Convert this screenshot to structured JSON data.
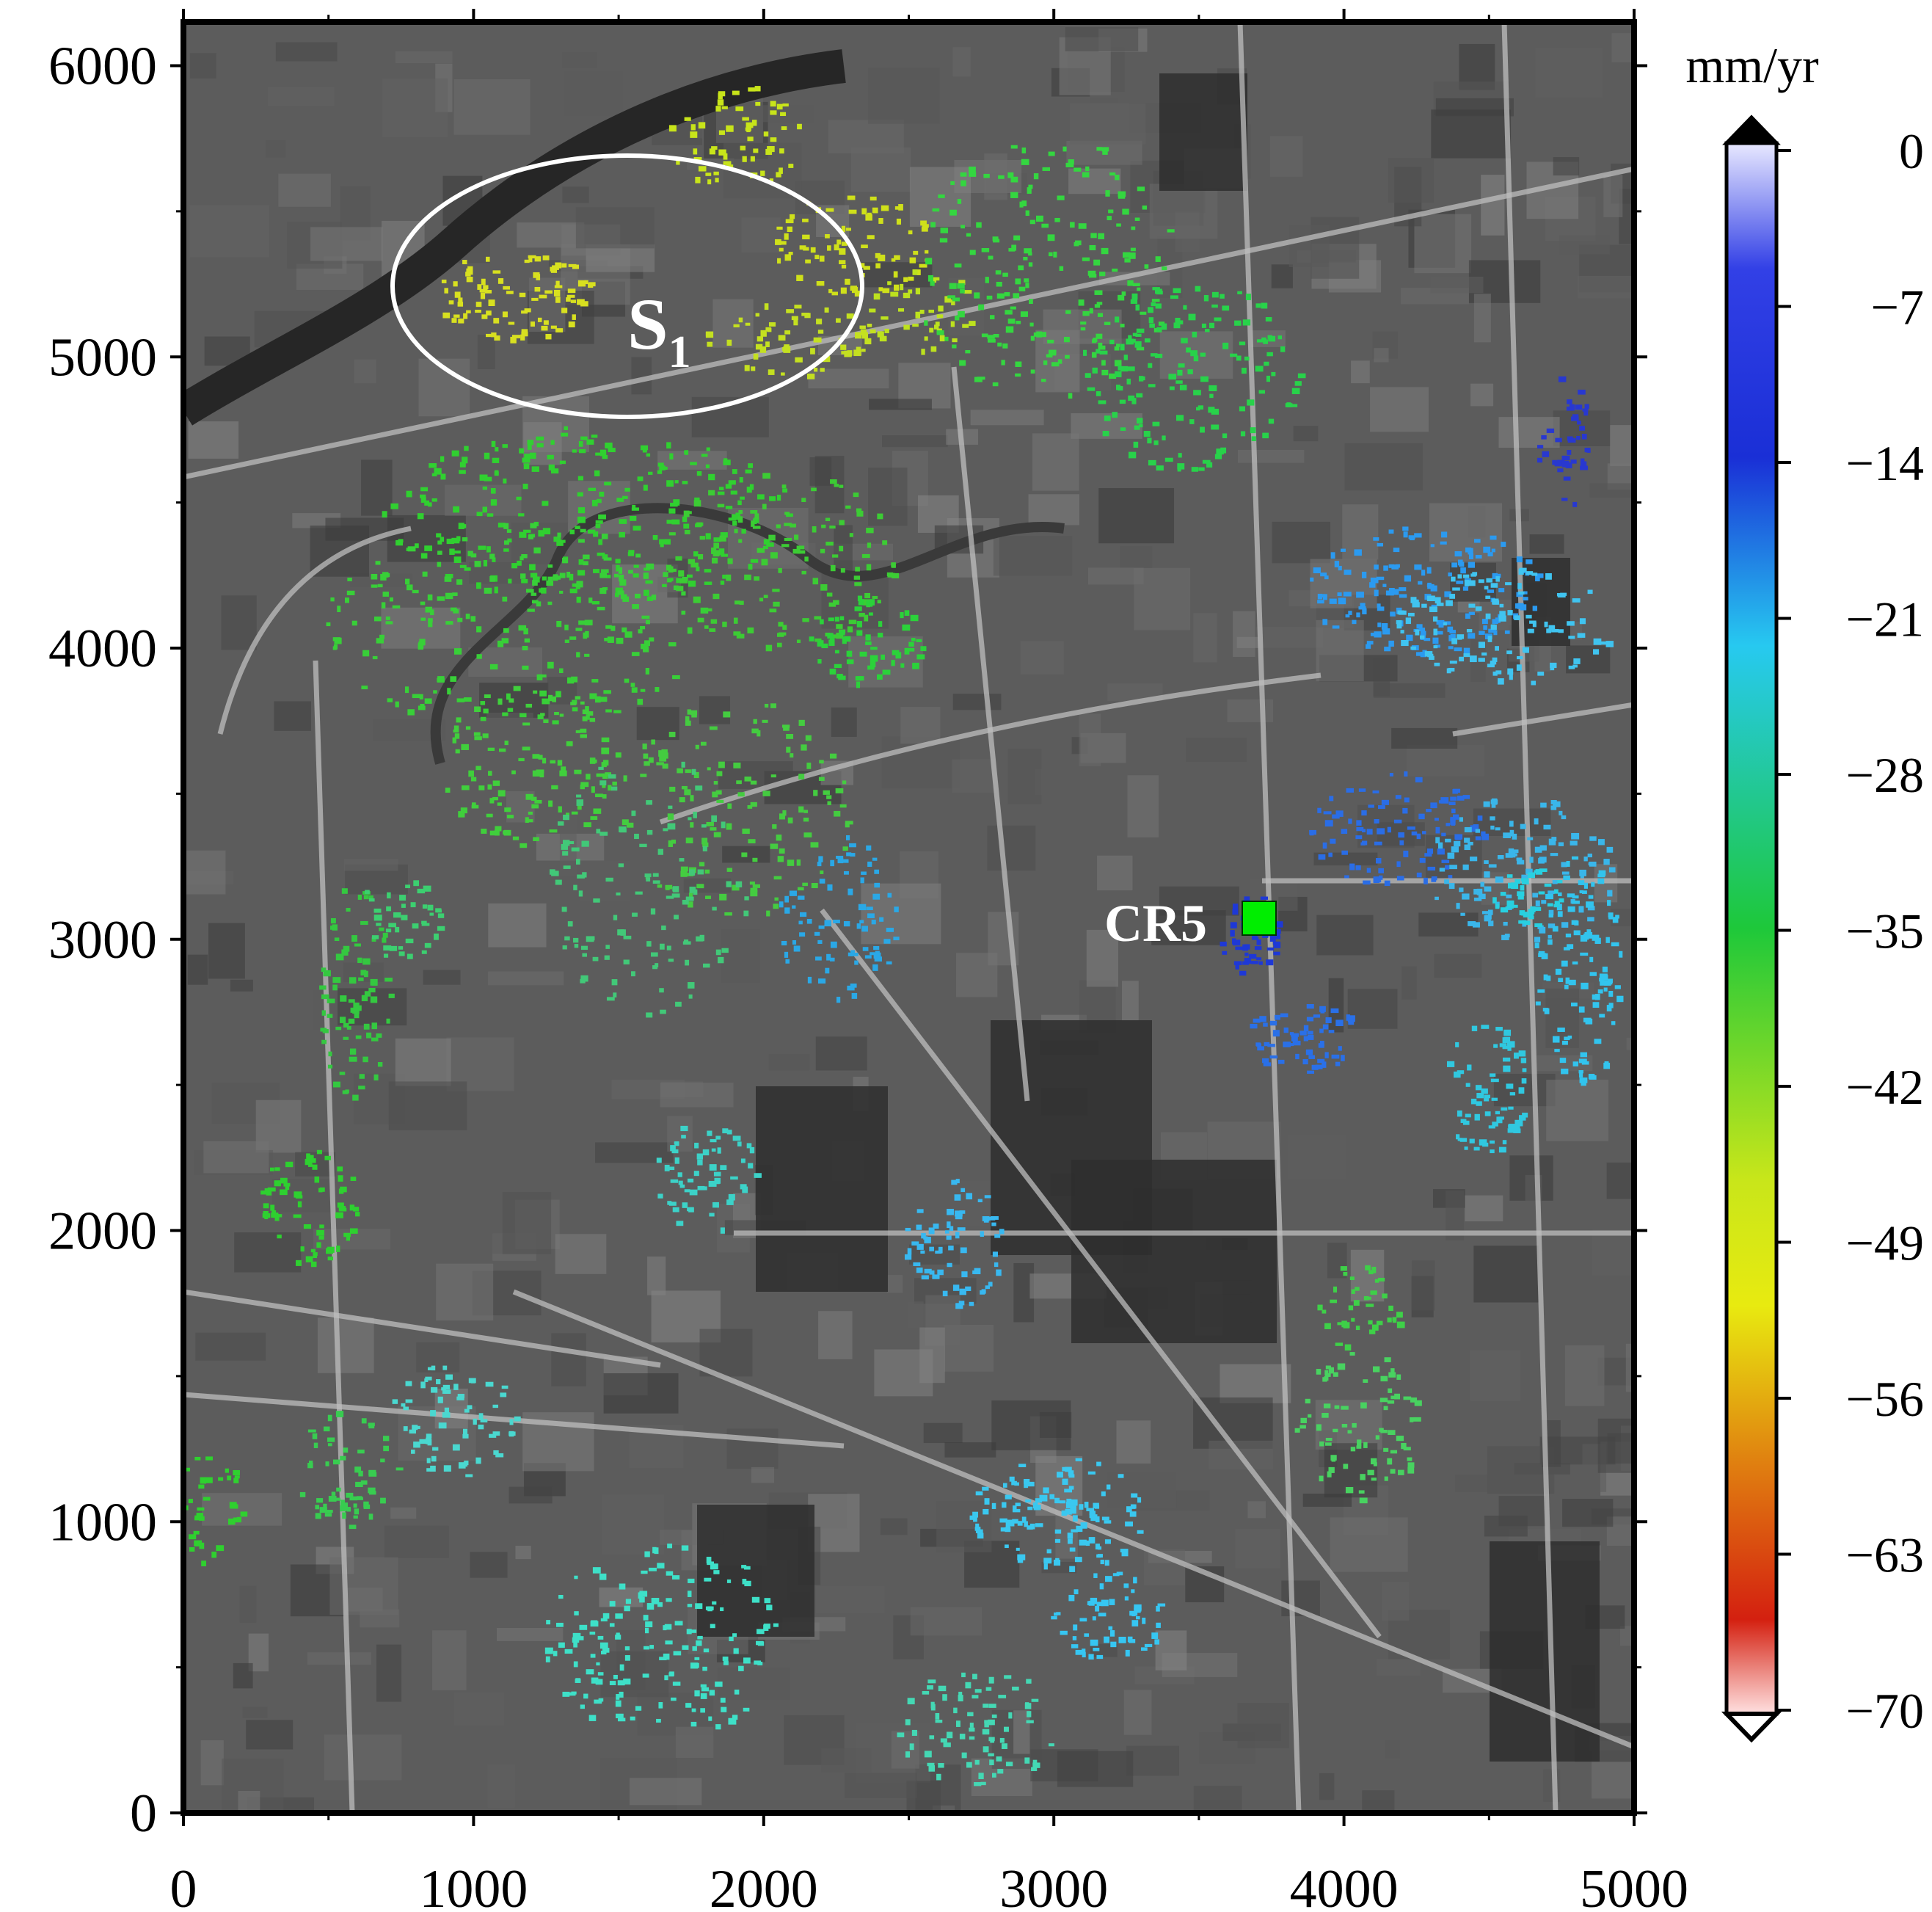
{
  "figure": {
    "type": "deformation-velocity-map",
    "x_axis": {
      "ticks": [
        "0",
        "1000",
        "2000",
        "3000",
        "4000",
        "5000"
      ],
      "range": [
        0,
        5000
      ]
    },
    "y_axis": {
      "ticks": [
        "0",
        "1000",
        "2000",
        "3000",
        "4000",
        "5000",
        "6000"
      ],
      "range": [
        0,
        6150
      ]
    }
  },
  "colorbar": {
    "unit_label": "mm/yr",
    "ticks": [
      "0",
      "−7",
      "−14",
      "−21",
      "−28",
      "−35",
      "−42",
      "−49",
      "−56",
      "−63",
      "−70"
    ],
    "range": [
      -70,
      0
    ],
    "colors_top_to_bottom": [
      "#e8e8ff",
      "#1a2fd6",
      "#27c9f0",
      "#1ec83a",
      "#e8ea10",
      "#e08010",
      "#d42010",
      "#ffe0e0"
    ]
  },
  "annotations": {
    "region_label": "S",
    "region_subscript": "1",
    "point_label": "CR5",
    "point_marker_color": "#00ee00",
    "ellipse_color": "#ffffff"
  },
  "basemap": {
    "description_colors": {
      "background": "#5c5c5c",
      "water": "#2c2c2c",
      "road": "#bdbdbd"
    }
  }
}
